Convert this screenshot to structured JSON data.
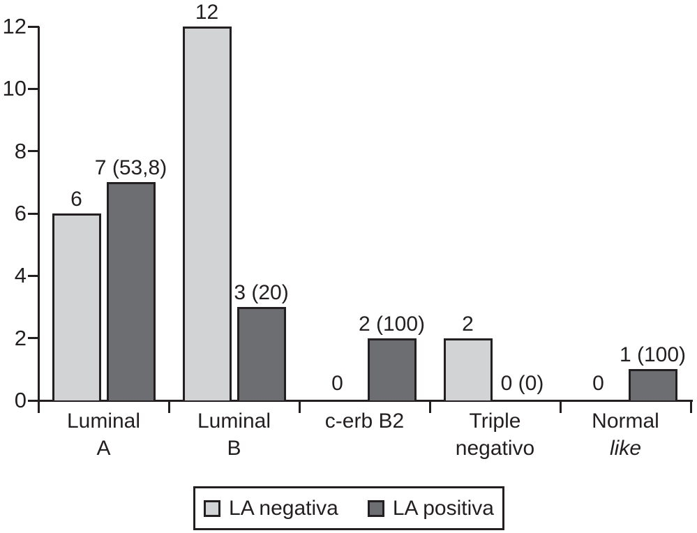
{
  "figure": {
    "background_color": "#ffffff",
    "ink_color": "#231f20"
  },
  "chart_data": {
    "type": "bar",
    "title": "",
    "xlabel": "",
    "ylabel": "",
    "grid": false,
    "y_axis": {
      "ticks": [
        "0",
        "2",
        "4",
        "6",
        "8",
        "10",
        "12"
      ],
      "range": [
        0,
        12
      ]
    },
    "categories": [
      {
        "lines": [
          {
            "text": "Luminal",
            "italic": false
          },
          {
            "text": "A",
            "italic": false
          }
        ]
      },
      {
        "lines": [
          {
            "text": "Luminal",
            "italic": false
          },
          {
            "text": "B",
            "italic": false
          }
        ]
      },
      {
        "lines": [
          {
            "text": "c-erb B2",
            "italic": false
          }
        ]
      },
      {
        "lines": [
          {
            "text": "Triple",
            "italic": false
          },
          {
            "text": "negativo",
            "italic": false
          }
        ]
      },
      {
        "lines": [
          {
            "text": "Normal",
            "italic": false
          },
          {
            "text": "like",
            "italic": true
          }
        ]
      }
    ],
    "series": [
      {
        "name": "LA negativa",
        "color": "#d1d3d4",
        "values": [
          6,
          12,
          0,
          2,
          0
        ],
        "labels": [
          "6",
          "12",
          "0",
          "2",
          "0"
        ]
      },
      {
        "name": "LA positiva",
        "color": "#6d6e71",
        "values": [
          7,
          3,
          2,
          0,
          1
        ],
        "labels": [
          "7 (53,8)",
          "3 (20)",
          "2 (100)",
          "0 (0)",
          "1 (100)"
        ]
      }
    ],
    "legend": {
      "position": "bottom",
      "entries": [
        "LA negativa",
        "LA positiva"
      ]
    }
  }
}
